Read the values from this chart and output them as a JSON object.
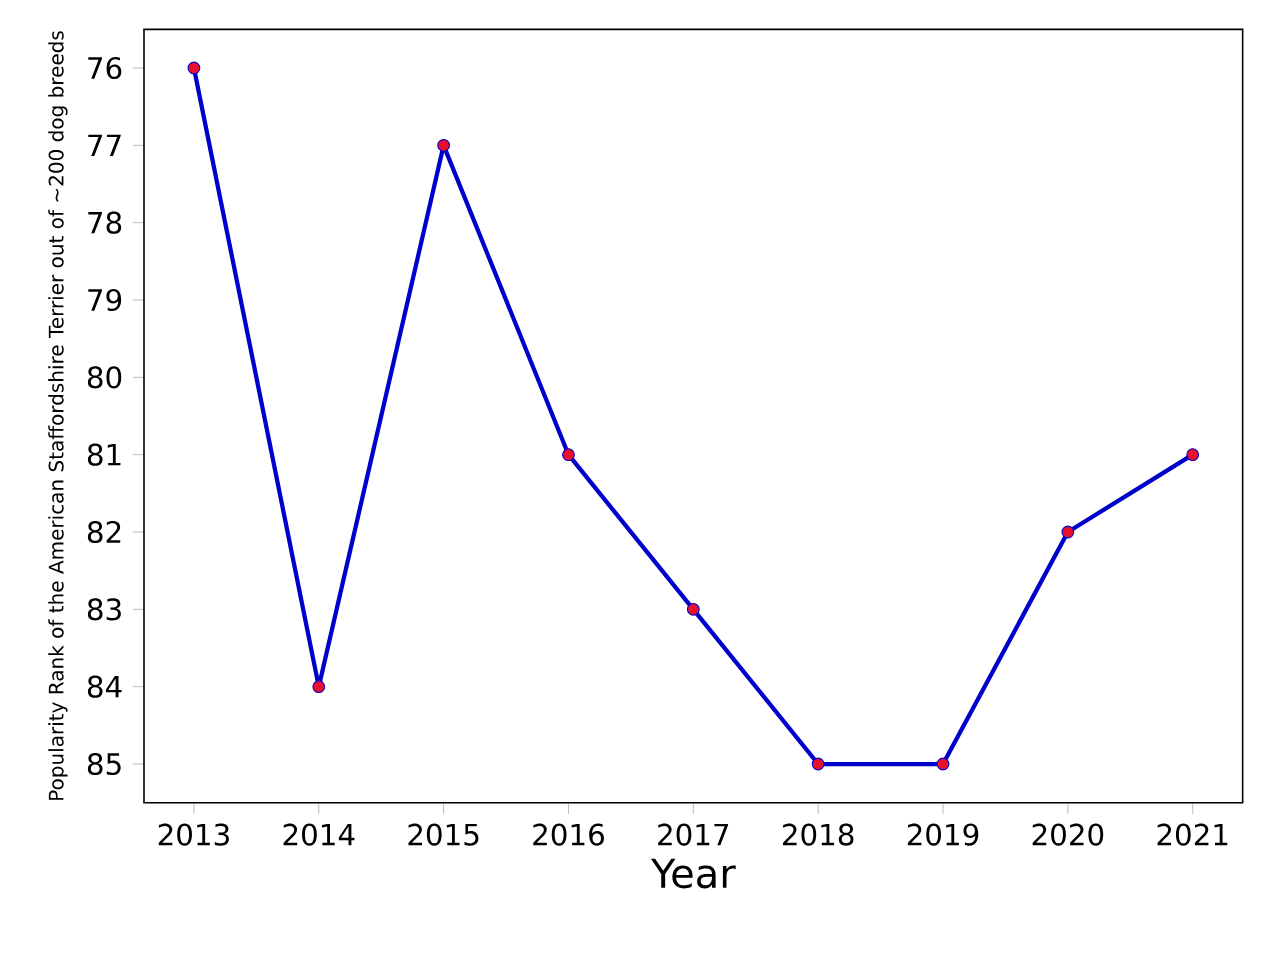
{
  "chart_data": {
    "type": "line",
    "xlabel": "Year",
    "ylabel": "Popularity Rank of the American Staffordshire Terrier out of ~200 dog breeds",
    "categories": [
      "2013",
      "2014",
      "2015",
      "2016",
      "2017",
      "2018",
      "2019",
      "2020",
      "2021"
    ],
    "series": [
      {
        "color": "#0000cd",
        "colors": [
          "#e8112d",
          "#e8112d",
          "#e8112d",
          "#e8112d",
          "#e8112d",
          "#e8112d",
          "#e8112d",
          "#e8112d",
          "#e8112d"
        ],
        "values": [
          76,
          84,
          77,
          81,
          83,
          85,
          85,
          82,
          81
        ]
      }
    ],
    "ylim": [
      85.5,
      75.5
    ],
    "yticks": [
      76,
      77,
      78,
      79,
      80,
      81,
      82,
      83,
      84,
      85
    ],
    "marker": "circle",
    "line_style": "solid"
  }
}
